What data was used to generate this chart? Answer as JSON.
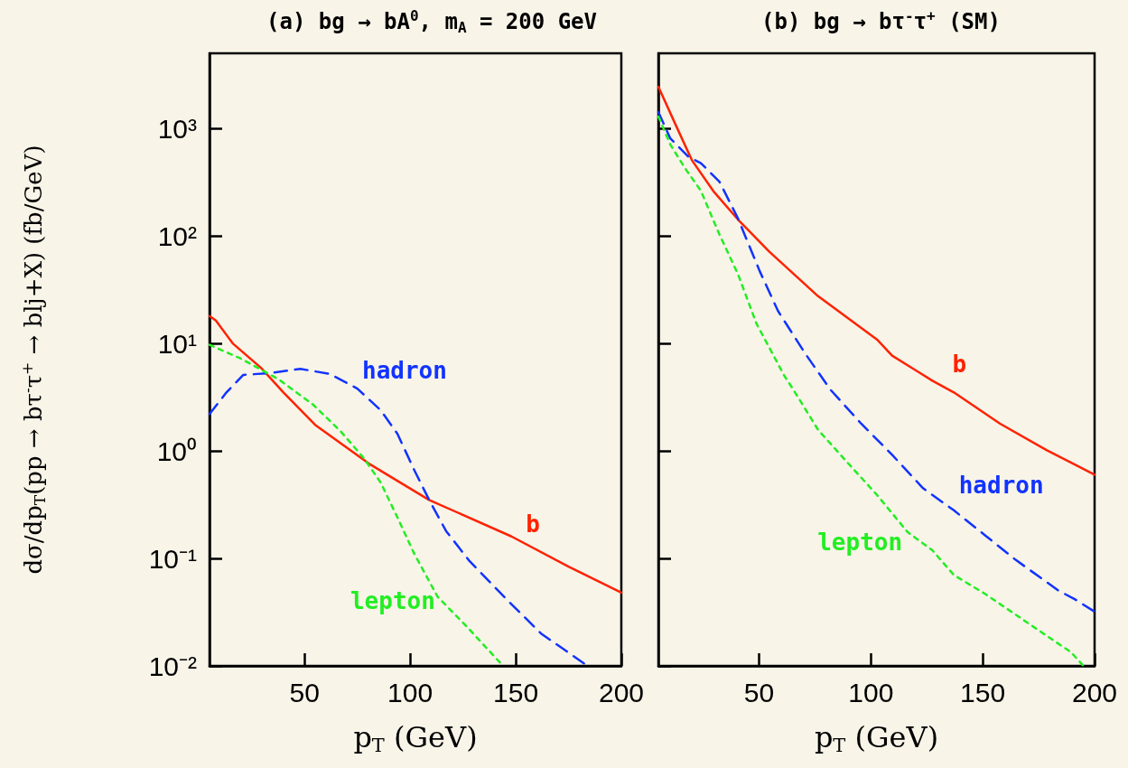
{
  "chart_data": [
    {
      "type": "line",
      "title": "(a) bg → bA$^{0}$, m$_{A}$ = 200 GeV",
      "xlabel": "p$_{T}$ (GeV)",
      "ylabel": "dσ/dp$_{T}$(pp → bτ$^{-}$τ$^{+}$ → blj+X) (fb/GeV)",
      "log": "y",
      "marker": "none",
      "xlim": [
        5,
        200
      ],
      "xticks": [
        50,
        100,
        150,
        200
      ],
      "ylim": [
        0.01,
        5000
      ],
      "yticks": [
        {
          "value": 0.01,
          "label": "10⁻²"
        },
        {
          "value": 0.1,
          "label": "10⁻¹"
        },
        {
          "value": 1,
          "label": "10⁰"
        },
        {
          "value": 10,
          "label": "10¹"
        },
        {
          "value": 100,
          "label": "10²"
        },
        {
          "value": 1000,
          "label": "10³"
        }
      ],
      "annotations": [
        "b",
        "hadron",
        "lepton"
      ],
      "series": [
        {
          "color": "#ff2200",
          "line_style": "solid",
          "x": [
            5,
            8,
            16,
            29.5,
            40,
            55,
            81,
            109,
            148,
            175,
            200
          ],
          "values": [
            18,
            16.3,
            10,
            5.9,
            3.5,
            1.75,
            0.75,
            0.35,
            0.16,
            0.084,
            0.048
          ]
        },
        {
          "color": "#1133ff",
          "line_style": "dashed",
          "x": [
            5,
            13,
            21,
            34,
            48,
            62,
            75,
            86,
            94,
            102,
            109,
            117,
            128,
            146,
            162,
            184
          ],
          "values": [
            2.2,
            3.5,
            5.1,
            5.3,
            5.8,
            5.2,
            3.8,
            2.4,
            1.44,
            0.66,
            0.35,
            0.18,
            0.095,
            0.041,
            0.02,
            0.01
          ]
        },
        {
          "color": "#22ee22",
          "line_style": "dotted",
          "x": [
            5,
            20,
            38,
            54,
            67,
            78,
            86,
            94,
            102,
            113,
            127,
            144
          ],
          "values": [
            9.7,
            7.2,
            4.6,
            2.7,
            1.53,
            0.86,
            0.51,
            0.24,
            0.11,
            0.044,
            0.023,
            0.01
          ]
        }
      ]
    },
    {
      "type": "line",
      "title": "(b) bg → bτ$^{-}$τ$^{+}$ (SM)",
      "xlabel": "p$_{T}$ (GeV)",
      "log": "y",
      "marker": "none",
      "tick_labels": "x",
      "xlim": [
        5,
        200
      ],
      "xticks": [
        50,
        100,
        150,
        200
      ],
      "ylim": [
        0.01,
        5000
      ],
      "yticks": [
        0.01,
        0.1,
        1,
        10,
        100,
        1000
      ],
      "annotations": [
        "b",
        "hadron",
        "lepton"
      ],
      "series": [
        {
          "color": "#ff2200",
          "line_style": "solid",
          "x": [
            5,
            13,
            20,
            29.6,
            40.6,
            54.4,
            76.4,
            102.7,
            109.5,
            127.5,
            137.1,
            157.8,
            178.5,
            200
          ],
          "values": [
            2440,
            1050,
            506,
            261,
            142,
            72,
            27.5,
            10.9,
            7.7,
            4.5,
            3.5,
            1.79,
            1.02,
            0.6
          ]
        },
        {
          "color": "#1133ff",
          "line_style": "dashed",
          "x": [
            5,
            10.3,
            18.5,
            24,
            32.3,
            40.6,
            50.3,
            58.5,
            70.9,
            82,
            95.7,
            109.5,
            123.3,
            137.1,
            150.9,
            164.7,
            184,
            190.9,
            200
          ],
          "values": [
            1420,
            809,
            543,
            476,
            320,
            145,
            47,
            20,
            7.9,
            3.7,
            1.79,
            0.92,
            0.45,
            0.28,
            0.165,
            0.097,
            0.05,
            0.042,
            0.032
          ]
        },
        {
          "color": "#22ee22",
          "line_style": "dotted",
          "x": [
            5,
            10.3,
            17.2,
            24,
            32.3,
            40.6,
            48.9,
            54.4,
            61.3,
            65.4,
            76.4,
            88.8,
            102.7,
            116.4,
            127.5,
            137.1,
            150.9,
            164.7,
            177.1,
            189.5,
            195
          ],
          "values": [
            1290,
            710,
            418,
            263,
            103,
            44,
            15.2,
            9.3,
            5,
            3.7,
            1.57,
            0.81,
            0.39,
            0.176,
            0.119,
            0.07,
            0.047,
            0.03,
            0.02,
            0.0134,
            0.01
          ]
        }
      ]
    }
  ]
}
